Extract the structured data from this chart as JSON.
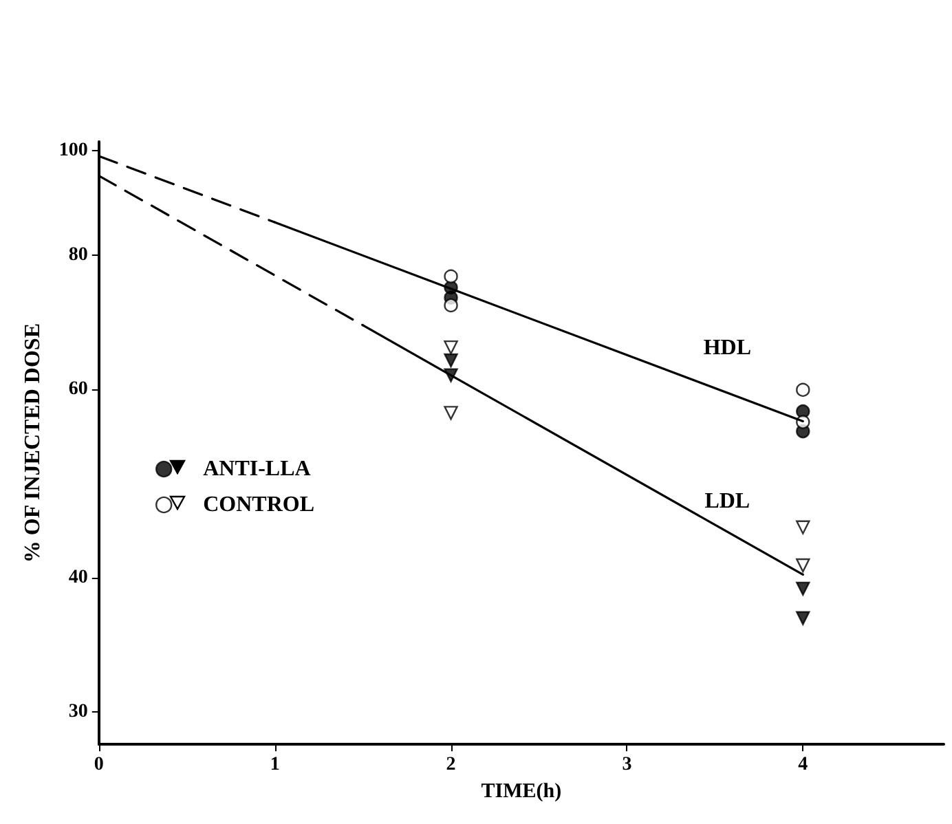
{
  "chart_data": {
    "type": "scatter",
    "xlabel": "TIME(h)",
    "ylabel": "% OF INJECTED DOSE",
    "log": "y",
    "xlim": [
      0,
      4.8
    ],
    "xticks": [
      0,
      1,
      2,
      3,
      4
    ],
    "ylim": [
      28,
      102
    ],
    "yticks": [
      30,
      40,
      60,
      80,
      100
    ],
    "grid": false,
    "legend": "left",
    "series": [
      {
        "name": "ANTI-LLA",
        "color": "#000000",
        "marker": "circle",
        "x": [
          2,
          2,
          4,
          4
        ],
        "values": [
          74.6,
          73.0,
          57.2,
          54.8
        ]
      },
      {
        "name": "CONTROL",
        "color": "#ffffff",
        "marker": "circle",
        "x": [
          2,
          2,
          4,
          4
        ],
        "values": [
          76.4,
          71.8,
          59.9,
          55.9
        ]
      },
      {
        "color": "#000000",
        "marker": "triangle",
        "x": [
          2,
          2,
          4,
          4
        ],
        "values": [
          63.8,
          61.8,
          39.1,
          36.7
        ]
      },
      {
        "color": "#ffffff",
        "marker": "triangle",
        "x": [
          2,
          2,
          4,
          4
        ],
        "values": [
          65.6,
          57.0,
          44.6,
          41.1
        ]
      },
      {
        "type": "line",
        "color": "#000000",
        "line_style": "dashed",
        "marker": "none",
        "x": [
          0,
          1
        ],
        "values": [
          98.9,
          85.8
        ]
      },
      {
        "type": "line",
        "name": "HDL",
        "color": "#000000",
        "line_style": "solid",
        "marker": "none",
        "x": [
          1,
          2,
          4
        ],
        "values": [
          85.8,
          74.4,
          56.0
        ]
      },
      {
        "type": "line",
        "color": "#000000",
        "line_style": "dashed",
        "marker": "none",
        "x": [
          0,
          1.5
        ],
        "values": [
          94.8,
          68.8
        ]
      },
      {
        "type": "line",
        "name": "LDL",
        "color": "#000000",
        "line_style": "solid",
        "marker": "none",
        "x": [
          1.5,
          2,
          4
        ],
        "values": [
          68.8,
          61.8,
          40.3
        ]
      }
    ]
  }
}
